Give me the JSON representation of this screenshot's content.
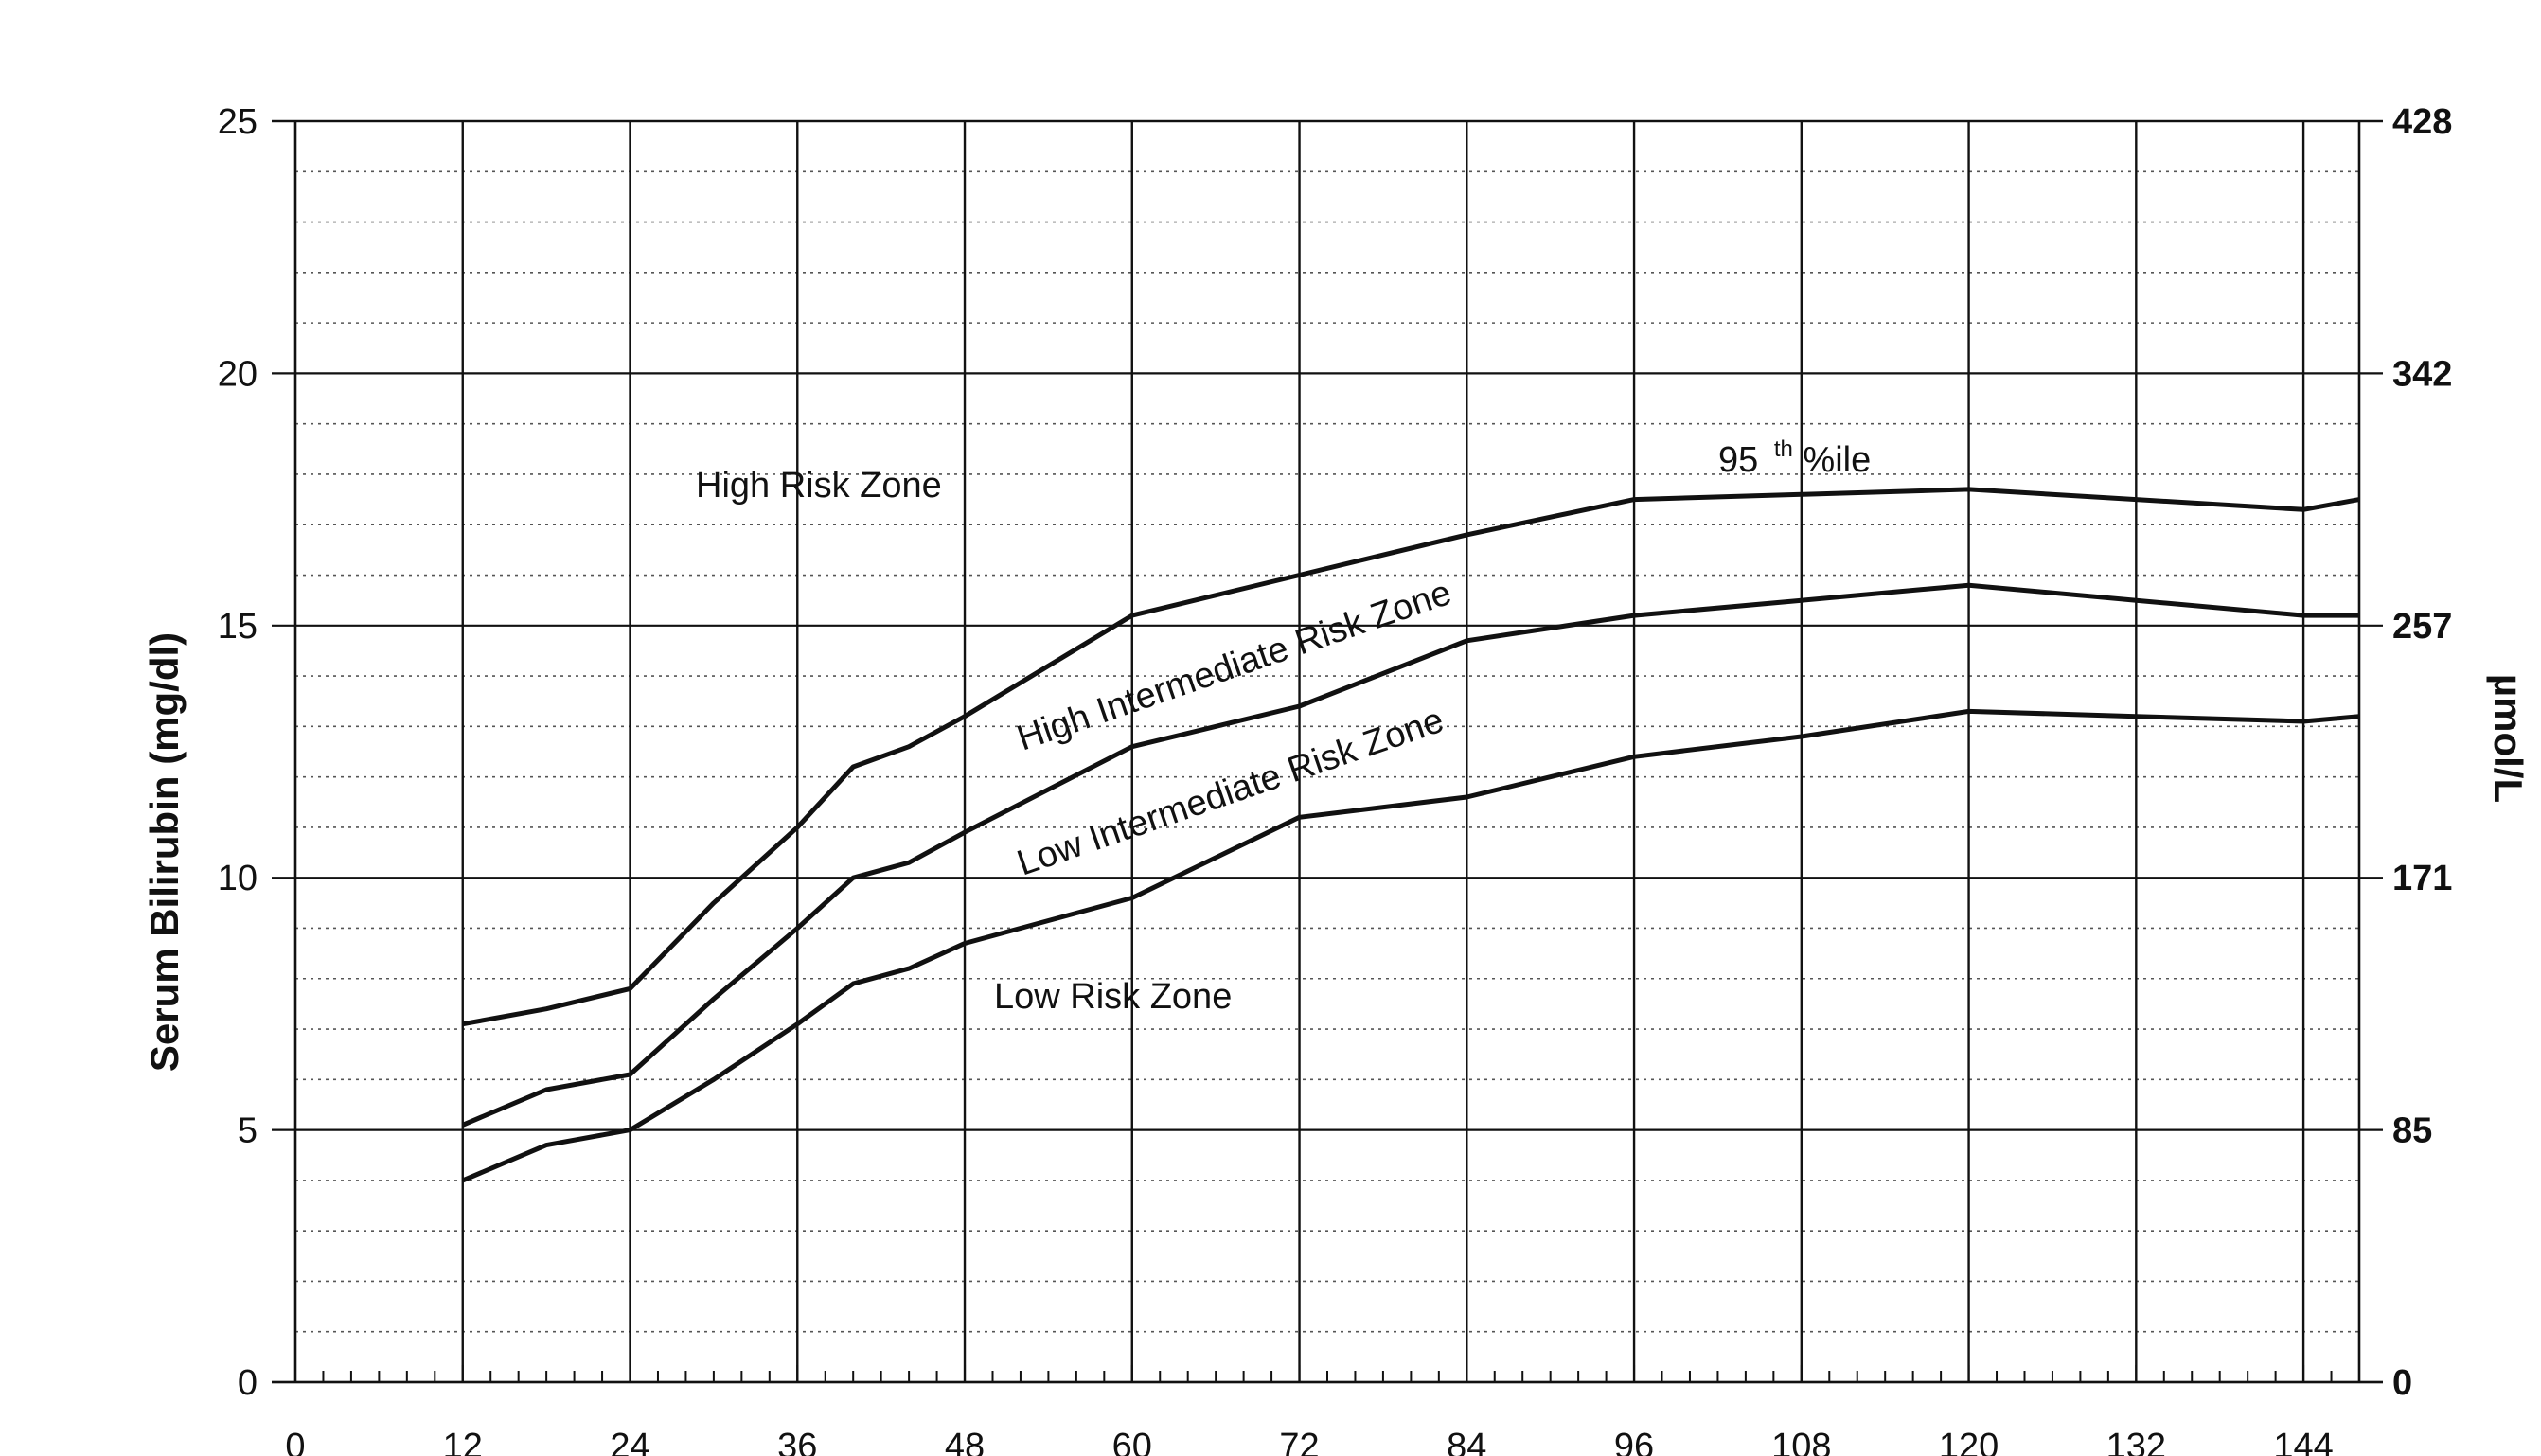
{
  "chart_data": {
    "type": "line",
    "title": "",
    "ylabel": "Serum Bilirubin (mg/dl)",
    "y2label": "µmol/L",
    "xlabel": "",
    "xlim": [
      0,
      148
    ],
    "ylim": [
      0,
      25
    ],
    "x_ticks": [
      "0",
      "12",
      "24",
      "36",
      "48",
      "60",
      "72",
      "84",
      "96",
      "108",
      "120",
      "132",
      "144"
    ],
    "y_ticks": [
      "0",
      "5",
      "10",
      "15",
      "20",
      "25"
    ],
    "y2_ticks": [
      "0",
      "85",
      "171",
      "257",
      "342",
      "428"
    ],
    "grid": true,
    "series": [
      {
        "x": [
          12,
          18,
          24,
          30,
          36,
          40,
          44,
          48,
          60,
          72,
          84,
          96,
          108,
          120,
          132,
          144,
          148
        ],
        "values": [
          7.1,
          7.4,
          7.8,
          9.5,
          11.0,
          12.2,
          12.6,
          13.2,
          15.2,
          16.0,
          16.8,
          17.5,
          17.6,
          17.7,
          17.5,
          17.3,
          17.5
        ]
      },
      {
        "x": [
          12,
          18,
          24,
          30,
          36,
          40,
          44,
          48,
          60,
          72,
          84,
          96,
          108,
          120,
          132,
          144,
          148
        ],
        "values": [
          5.1,
          5.8,
          6.1,
          7.6,
          9.0,
          10.0,
          10.3,
          10.9,
          12.6,
          13.4,
          14.7,
          15.2,
          15.5,
          15.8,
          15.5,
          15.2,
          15.2
        ]
      },
      {
        "x": [
          12,
          18,
          24,
          30,
          36,
          40,
          44,
          48,
          60,
          72,
          84,
          96,
          108,
          120,
          132,
          144,
          148
        ],
        "values": [
          4.0,
          4.7,
          5.0,
          6.0,
          7.1,
          7.9,
          8.2,
          8.7,
          9.6,
          11.2,
          11.6,
          12.4,
          12.8,
          13.3,
          13.2,
          13.1,
          13.2
        ]
      }
    ],
    "annotations": {
      "high_risk": "High Risk Zone",
      "high_intermediate": "High Intermediate Risk Zone",
      "low_intermediate": "Low Intermediate Risk Zone",
      "low_risk": "Low Risk Zone",
      "p95_main": "95",
      "p95_sup": "th",
      "p95_suffix": "%ile"
    }
  }
}
